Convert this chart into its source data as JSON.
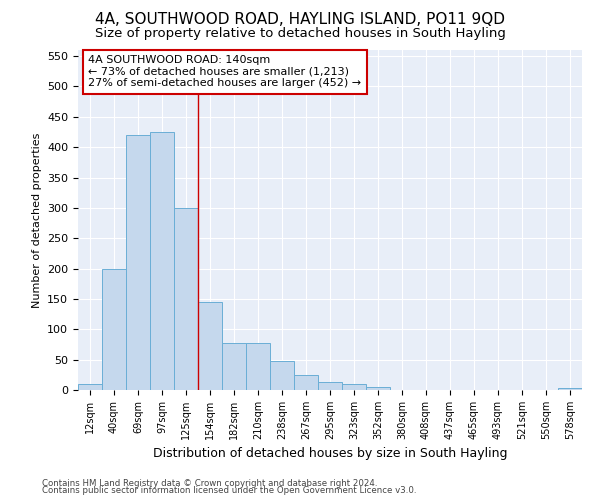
{
  "title1": "4A, SOUTHWOOD ROAD, HAYLING ISLAND, PO11 9QD",
  "title2": "Size of property relative to detached houses in South Hayling",
  "xlabel": "Distribution of detached houses by size in South Hayling",
  "ylabel": "Number of detached properties",
  "categories": [
    "12sqm",
    "40sqm",
    "69sqm",
    "97sqm",
    "125sqm",
    "154sqm",
    "182sqm",
    "210sqm",
    "238sqm",
    "267sqm",
    "295sqm",
    "323sqm",
    "352sqm",
    "380sqm",
    "408sqm",
    "437sqm",
    "465sqm",
    "493sqm",
    "521sqm",
    "550sqm",
    "578sqm"
  ],
  "values": [
    10,
    200,
    420,
    425,
    300,
    145,
    78,
    78,
    48,
    25,
    13,
    10,
    5,
    0,
    0,
    0,
    0,
    0,
    0,
    0,
    4
  ],
  "bar_color": "#c5d8ed",
  "bar_edge_color": "#6aaed6",
  "vline_x": 4.5,
  "vline_color": "#cc0000",
  "annotation_text": "4A SOUTHWOOD ROAD: 140sqm\n← 73% of detached houses are smaller (1,213)\n27% of semi-detached houses are larger (452) →",
  "annotation_box_color": "#ffffff",
  "annotation_box_edge": "#cc0000",
  "ylim": [
    0,
    560
  ],
  "yticks": [
    0,
    50,
    100,
    150,
    200,
    250,
    300,
    350,
    400,
    450,
    500,
    550
  ],
  "background_color": "#e8eef8",
  "footer1": "Contains HM Land Registry data © Crown copyright and database right 2024.",
  "footer2": "Contains public sector information licensed under the Open Government Licence v3.0.",
  "grid_color": "#ffffff",
  "title1_fontsize": 11,
  "title2_fontsize": 9.5
}
